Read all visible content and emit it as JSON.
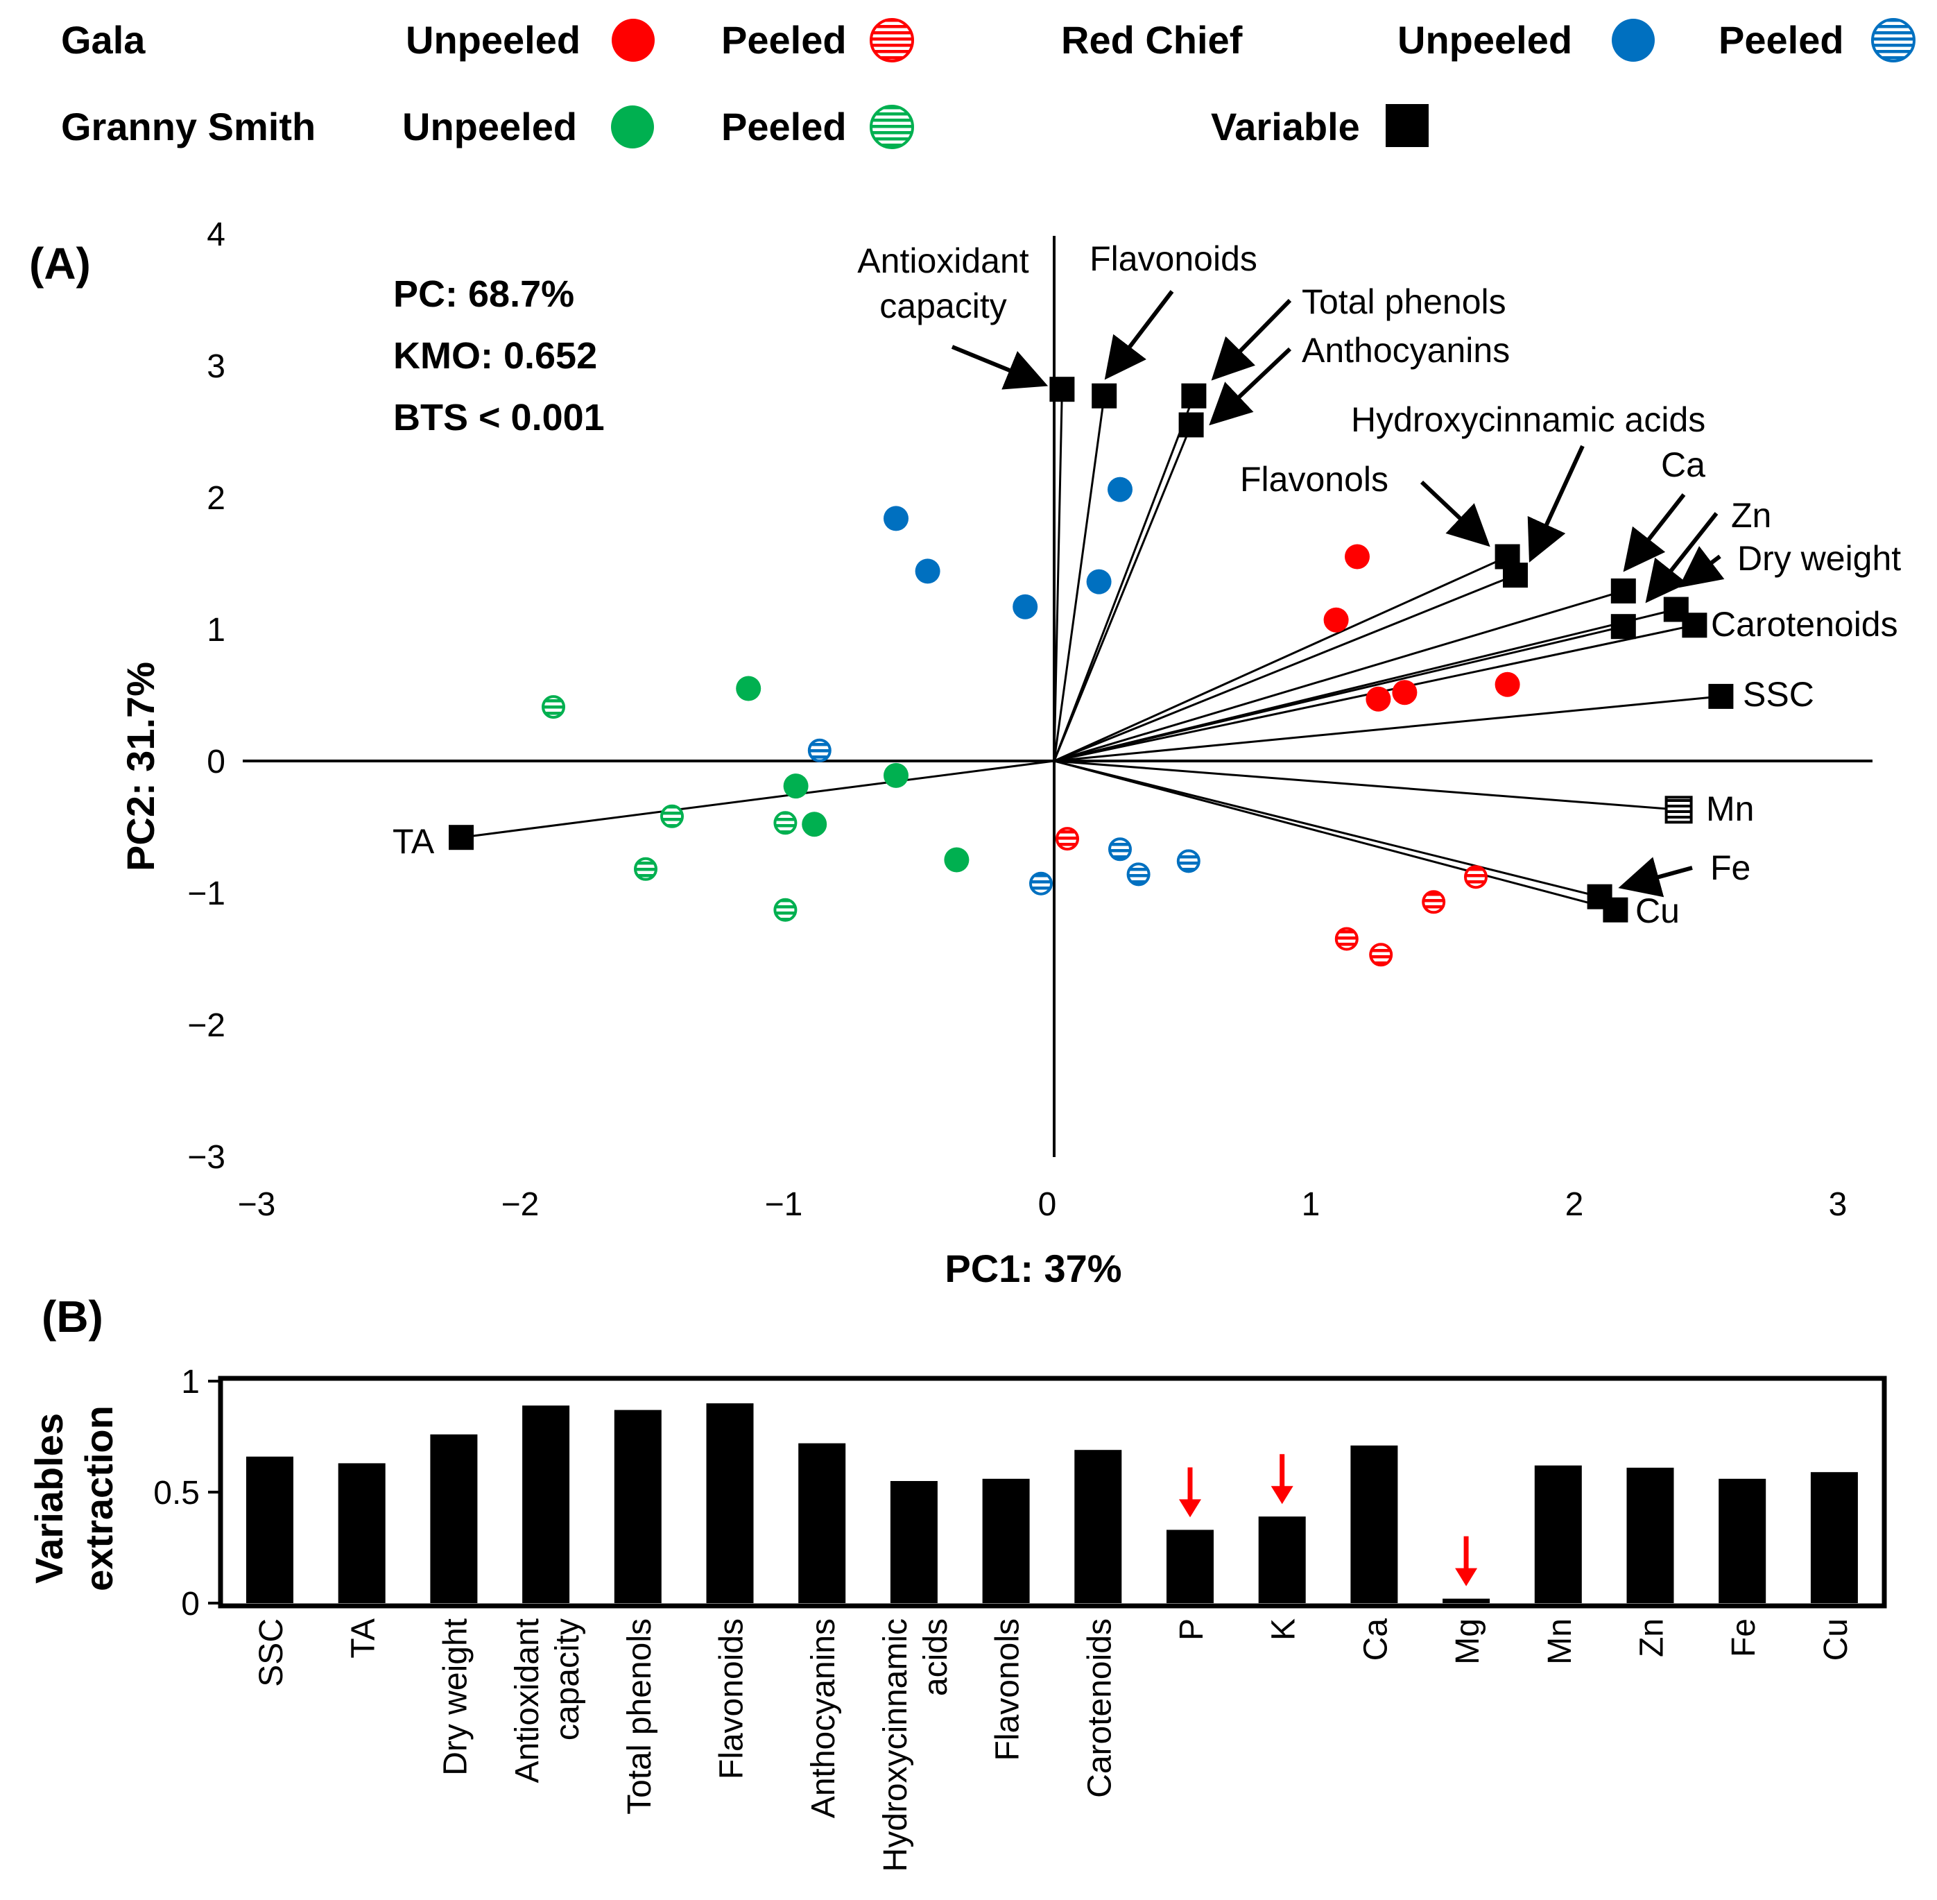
{
  "legend": {
    "groups": [
      {
        "cultivar": "Gala",
        "unpeeled_label": "Unpeeled",
        "peeled_label": "Peeled",
        "color": "#ff0000"
      },
      {
        "cultivar": "Red Chief",
        "unpeeled_label": "Unpeeled",
        "peeled_label": "Peeled",
        "color": "#0070c0"
      },
      {
        "cultivar": "Granny Smith",
        "unpeeled_label": "Unpeeled",
        "peeled_label": "Peeled",
        "color": "#00b050"
      }
    ],
    "variable_label": "Variable"
  },
  "chart_data": [
    {
      "panel": "(A)",
      "type": "scatter",
      "title": "",
      "xlabel": "PC1: 37%",
      "ylabel": "PC2: 31.7%",
      "xlim": [
        -3,
        3
      ],
      "ylim": [
        -3,
        4
      ],
      "x_ticks": [
        "−3",
        "−2",
        "−1",
        "0",
        "1",
        "2",
        "3"
      ],
      "y_ticks": [
        "4",
        "3",
        "2",
        "1",
        "0",
        "−1",
        "−2",
        "−3"
      ],
      "stats": [
        "PC: 68.7%",
        "KMO: 0.652",
        "BTS < 0.001"
      ],
      "samples": [
        {
          "group": "Gala",
          "peeled": false,
          "points": [
            [
              1.15,
              1.55
            ],
            [
              1.07,
              1.07
            ],
            [
              1.23,
              0.47
            ],
            [
              1.33,
              0.52
            ],
            [
              1.72,
              0.58
            ]
          ]
        },
        {
          "group": "Gala",
          "peeled": true,
          "points": [
            [
              0.05,
              -0.59
            ],
            [
              1.6,
              -0.88
            ],
            [
              1.44,
              -1.07
            ],
            [
              1.11,
              -1.35
            ],
            [
              1.24,
              -1.47
            ]
          ]
        },
        {
          "group": "Red Chief",
          "peeled": false,
          "points": [
            [
              -0.6,
              1.84
            ],
            [
              -0.48,
              1.44
            ],
            [
              -0.11,
              1.17
            ],
            [
              0.25,
              2.06
            ],
            [
              0.17,
              1.36
            ]
          ]
        },
        {
          "group": "Red Chief",
          "peeled": true,
          "points": [
            [
              -0.89,
              0.08
            ],
            [
              0.25,
              -0.67
            ],
            [
              0.32,
              -0.86
            ],
            [
              0.51,
              -0.76
            ],
            [
              -0.05,
              -0.93
            ]
          ]
        },
        {
          "group": "Granny Smith",
          "peeled": false,
          "points": [
            [
              -1.16,
              0.55
            ],
            [
              -0.98,
              -0.19
            ],
            [
              -0.6,
              -0.11
            ],
            [
              -0.91,
              -0.48
            ],
            [
              -0.37,
              -0.75
            ]
          ]
        },
        {
          "group": "Granny Smith",
          "peeled": true,
          "points": [
            [
              -1.9,
              0.41
            ],
            [
              -1.45,
              -0.42
            ],
            [
              -1.55,
              -0.82
            ],
            [
              -1.02,
              -0.47
            ],
            [
              -1.02,
              -1.13
            ]
          ]
        }
      ],
      "variables": [
        {
          "name": "Antioxidant capacity",
          "x": 0.03,
          "y": 2.82,
          "label_lines": [
            "Antioxidant",
            "capacity"
          ]
        },
        {
          "name": "Flavonoids",
          "x": 0.19,
          "y": 2.77,
          "label_lines": [
            "Flavonoids"
          ]
        },
        {
          "name": "Total phenols",
          "x": 0.53,
          "y": 2.77,
          "label_lines": [
            "Total phenols"
          ]
        },
        {
          "name": "Anthocyanins",
          "x": 0.52,
          "y": 2.55,
          "label_lines": [
            "Anthocyanins"
          ]
        },
        {
          "name": "Flavonols",
          "x": 1.72,
          "y": 1.55,
          "label_lines": [
            "Flavonols"
          ]
        },
        {
          "name": "Hydroxycinnamic acids",
          "x": 1.75,
          "y": 1.41,
          "label_lines": [
            "Hydroxycinnamic acids"
          ]
        },
        {
          "name": "Ca",
          "x": 2.16,
          "y": 1.29,
          "label_lines": [
            "Ca"
          ]
        },
        {
          "name": "Zn",
          "x": 2.16,
          "y": 1.02,
          "label_lines": [
            "Zn"
          ]
        },
        {
          "name": "Dry weight",
          "x": 2.36,
          "y": 1.15,
          "label_lines": [
            "Dry weight"
          ]
        },
        {
          "name": "Carotenoids",
          "x": 2.43,
          "y": 1.03,
          "label_lines": [
            "Carotenoids"
          ]
        },
        {
          "name": "SSC",
          "x": 2.53,
          "y": 0.49,
          "label_lines": [
            "SSC"
          ]
        },
        {
          "name": "Mn",
          "x": 2.37,
          "y": -0.37,
          "label_lines": [
            "Mn"
          ]
        },
        {
          "name": "Fe",
          "x": 2.07,
          "y": -1.03,
          "label_lines": [
            "Fe"
          ]
        },
        {
          "name": "Cu",
          "x": 2.13,
          "y": -1.13,
          "label_lines": [
            "Cu"
          ]
        },
        {
          "name": "TA",
          "x": -2.25,
          "y": -0.58,
          "label_lines": [
            "TA"
          ]
        }
      ]
    },
    {
      "panel": "(B)",
      "type": "bar",
      "title": "",
      "ylabel_lines": [
        "Variables",
        "extraction"
      ],
      "ylim": [
        0,
        1
      ],
      "y_ticks": [
        "1",
        "0.5",
        "0"
      ],
      "categories": [
        "SSC",
        "TA",
        "Dry weight",
        "Antioxidant capacity",
        "Total phenols",
        "Flavonoids",
        "Anthocyanins",
        "Hydroxycinnamic acids",
        "Flavonols",
        "Carotenoids",
        "P",
        "K",
        "Ca",
        "Mg",
        "Mn",
        "Zn",
        "Fe",
        "Cu"
      ],
      "category_label_lines": [
        [
          "SSC"
        ],
        [
          "TA"
        ],
        [
          "Dry weight"
        ],
        [
          "Antioxidant",
          "capacity"
        ],
        [
          "Total phenols"
        ],
        [
          "Flavonoids"
        ],
        [
          "Anthocyanins"
        ],
        [
          "Hydroxycinnamic",
          "acids"
        ],
        [
          "Flavonols"
        ],
        [
          "Carotenoids"
        ],
        [
          "P"
        ],
        [
          "K"
        ],
        [
          "Ca"
        ],
        [
          "Mg"
        ],
        [
          "Mn"
        ],
        [
          "Zn"
        ],
        [
          "Fe"
        ],
        [
          "Cu"
        ]
      ],
      "values": [
        0.66,
        0.63,
        0.76,
        0.89,
        0.87,
        0.9,
        0.72,
        0.55,
        0.56,
        0.69,
        0.33,
        0.39,
        0.71,
        0.02,
        0.62,
        0.61,
        0.56,
        0.59
      ],
      "highlighted": [
        "P",
        "K",
        "Mg"
      ],
      "highlight_color": "#ff0000"
    }
  ]
}
